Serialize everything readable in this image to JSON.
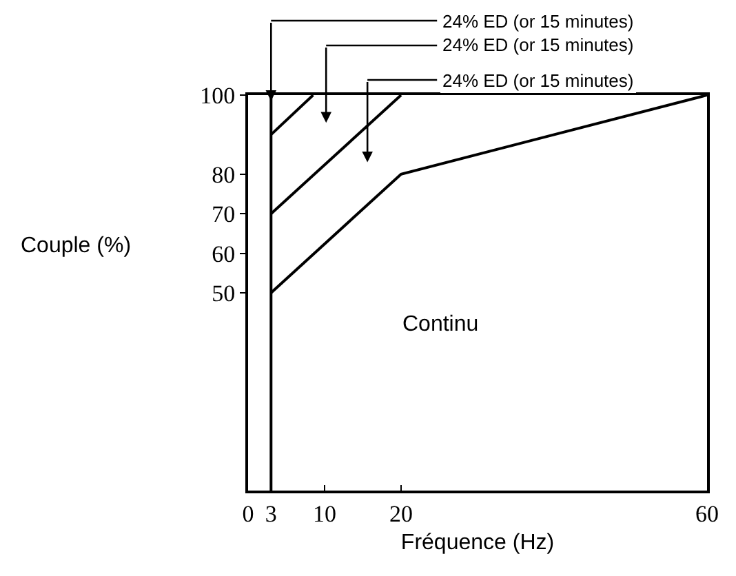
{
  "chart_data": {
    "type": "line",
    "xlabel": "Fréquence (Hz)",
    "ylabel": "Couple (%)",
    "xlim": [
      0,
      60
    ],
    "xticks": [
      0,
      3,
      10,
      20,
      60
    ],
    "ylim": [
      0,
      100
    ],
    "yticks": [
      50,
      60,
      70,
      80,
      100
    ],
    "series": [
      {
        "color": "#000000",
        "x": [
          3,
          8.5
        ],
        "values": [
          90,
          100
        ]
      },
      {
        "color": "#000000",
        "x": [
          3,
          20
        ],
        "values": [
          70,
          100
        ]
      },
      {
        "color": "#000000",
        "x": [
          3,
          20,
          60
        ],
        "values": [
          50,
          80,
          100
        ]
      }
    ],
    "ref_lines": [
      {
        "axis": "x",
        "value": 3,
        "color": "#000000"
      }
    ],
    "annotations": [
      "24% ED (or 15 minutes)",
      "24% ED (or 15 minutes)",
      "24% ED (or 15 minutes)",
      "Continu"
    ],
    "marker": "none",
    "line_style": "solid"
  }
}
